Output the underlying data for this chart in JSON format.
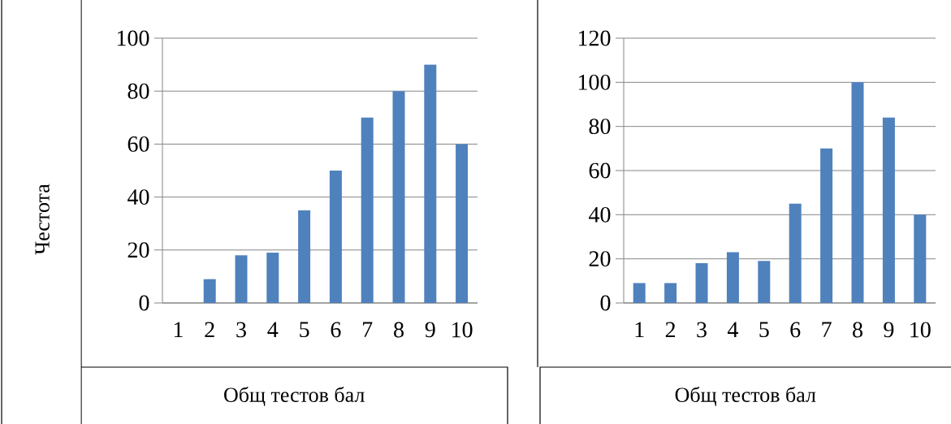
{
  "chart_data": [
    {
      "type": "bar",
      "categories": [
        "1",
        "2",
        "3",
        "4",
        "5",
        "6",
        "7",
        "8",
        "9",
        "10"
      ],
      "values": [
        0,
        9,
        18,
        19,
        35,
        50,
        70,
        80,
        90,
        60
      ],
      "color": "#4f81bd",
      "ylim": [
        0,
        100
      ],
      "yticks": [
        0,
        20,
        40,
        60,
        80,
        100
      ],
      "grid": "y",
      "xlabel": "Общ тестов бал",
      "ylabel": "Честота"
    },
    {
      "type": "bar",
      "categories": [
        "1",
        "2",
        "3",
        "4",
        "5",
        "6",
        "7",
        "8",
        "9",
        "10"
      ],
      "values": [
        9,
        9,
        18,
        23,
        19,
        45,
        70,
        100,
        84,
        40
      ],
      "color": "#4f81bd",
      "ylim": [
        0,
        120
      ],
      "yticks": [
        0,
        20,
        40,
        60,
        80,
        100,
        120
      ],
      "grid": "y",
      "xlabel": "Общ тестов бал"
    }
  ]
}
